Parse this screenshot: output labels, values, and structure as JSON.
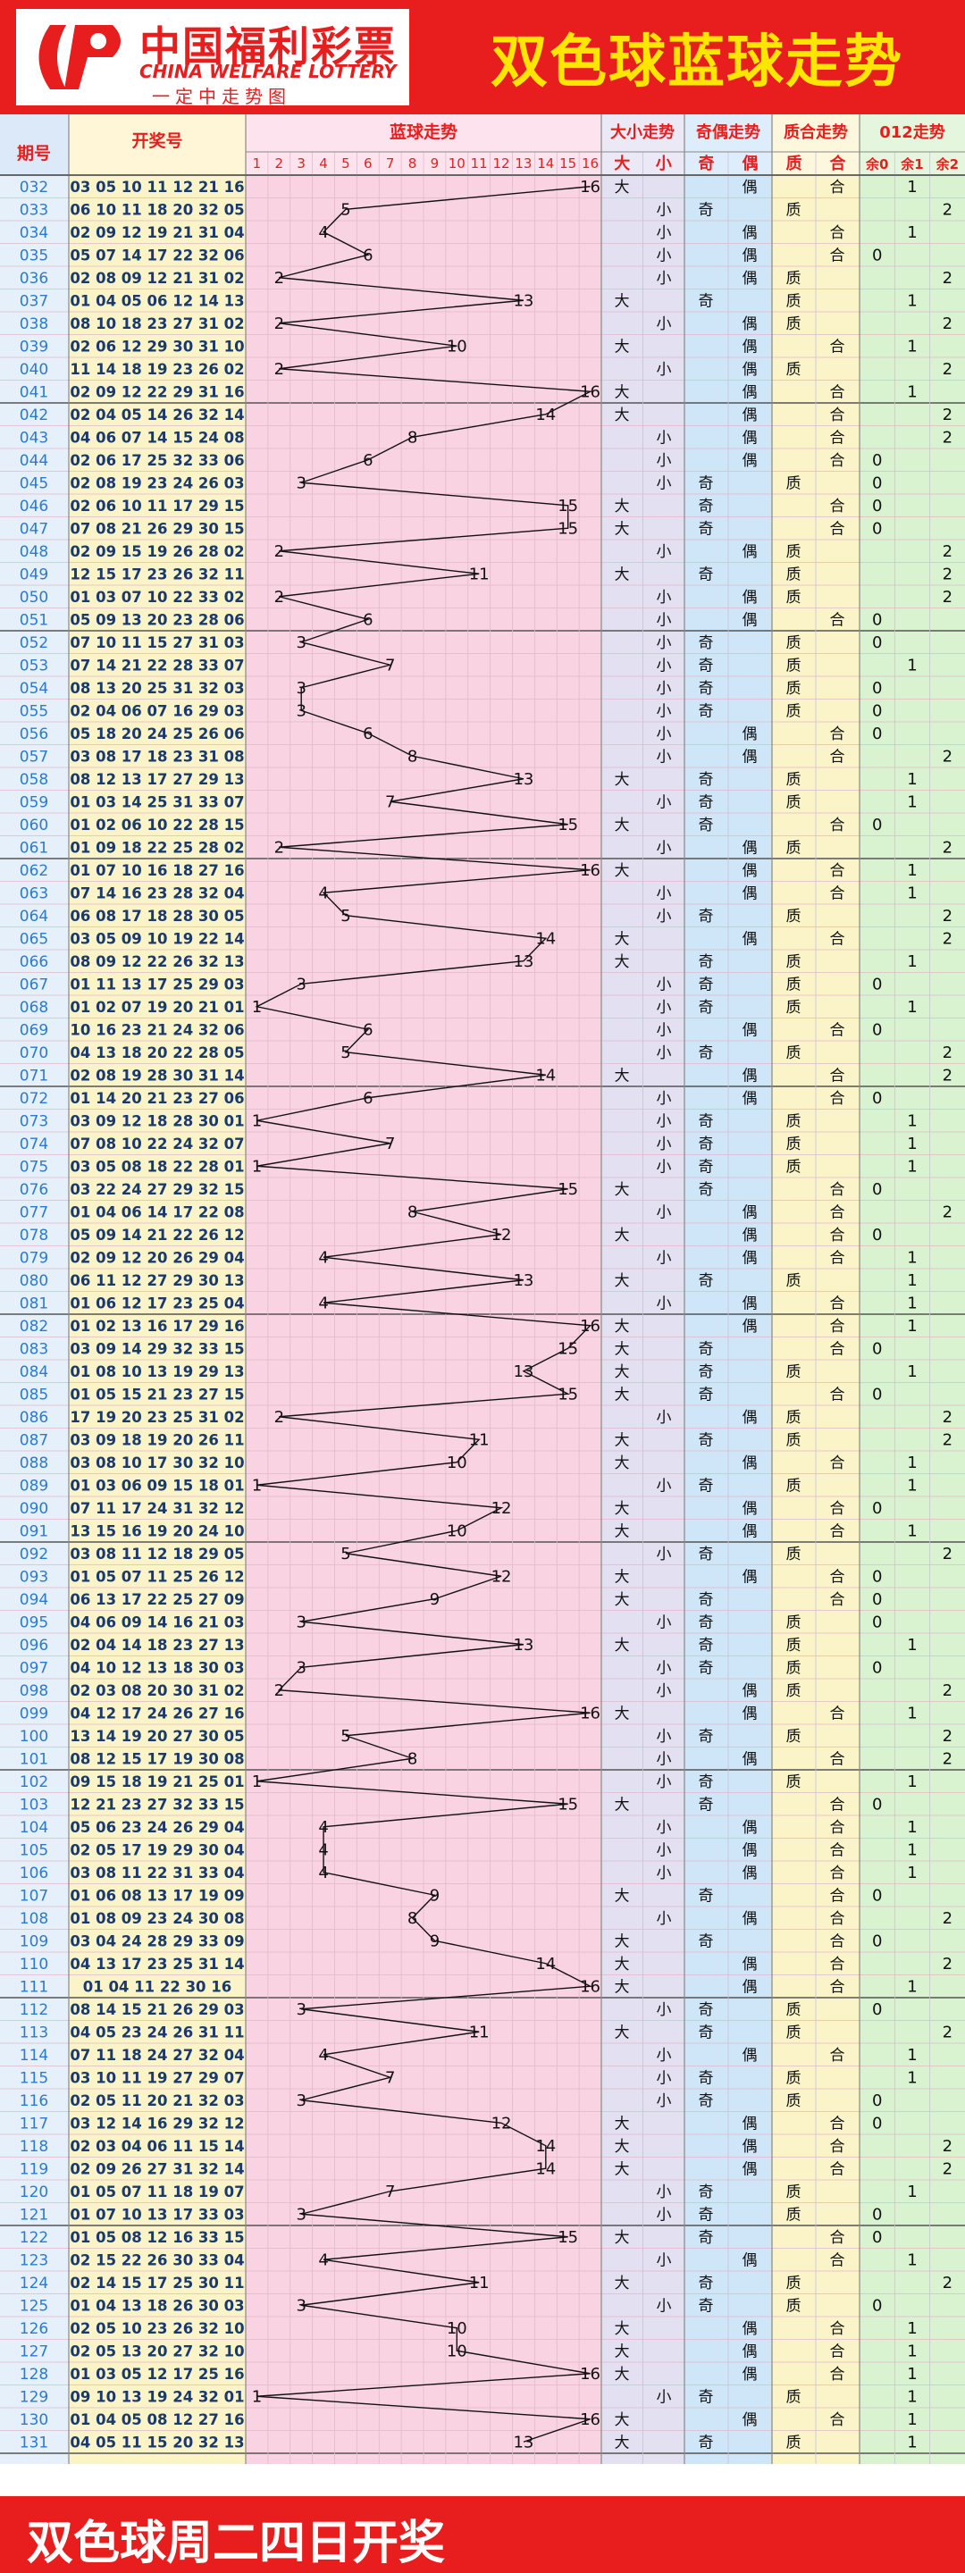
{
  "header": {
    "logo_cn": "中国福利彩票",
    "logo_en": "CHINA WELFARE LOTTERY",
    "logo_slogan": "一定中走势图",
    "title": "双色球蓝球走势"
  },
  "footer": {
    "text": "双色球周二四日开奖"
  },
  "columns": {
    "issue": "期号",
    "numbers": "开奖号",
    "blue": "蓝球走势",
    "size": "大小走势",
    "parity": "奇偶走势",
    "prime": "质合走势",
    "mod3": "012走势"
  },
  "sub_headers": {
    "blue_numbers": [
      "1",
      "2",
      "3",
      "4",
      "5",
      "6",
      "7",
      "8",
      "9",
      "10",
      "11",
      "12",
      "13",
      "14",
      "15",
      "16"
    ],
    "size": [
      "大",
      "小"
    ],
    "parity": [
      "奇",
      "偶"
    ],
    "prime": [
      "质",
      "合"
    ],
    "mod3": [
      "余0",
      "余1",
      "余2"
    ]
  },
  "colors": {
    "header_red": "#e81d1d",
    "title_yellow": "#ffe600",
    "pink_zone": "#f9d3e2",
    "lavender_zone": "#e3e0f1",
    "blue_zone": "#cfe5f8",
    "yellow_zone": "#fbf4c8",
    "green_zone": "#d9f3d1",
    "grid": "#e8b8c8",
    "issue_blue": "#2a7ad0"
  },
  "chart_data": {
    "type": "table",
    "title": "双色球蓝球走势",
    "rows": [
      {
        "issue": "032",
        "numbers": "03 05 10 11 12 21 16",
        "blue": 16
      },
      {
        "issue": "033",
        "numbers": "06 10 11 18 20 32 05",
        "blue": 5
      },
      {
        "issue": "034",
        "numbers": "02 09 12 19 21 31 04",
        "blue": 4
      },
      {
        "issue": "035",
        "numbers": "05 07 14 17 22 32 06",
        "blue": 6
      },
      {
        "issue": "036",
        "numbers": "02 08 09 12 21 31 02",
        "blue": 2
      },
      {
        "issue": "037",
        "numbers": "01 04 05 06 12 14 13",
        "blue": 13
      },
      {
        "issue": "038",
        "numbers": "08 10 18 23 27 31 02",
        "blue": 2
      },
      {
        "issue": "039",
        "numbers": "02 06 12 29 30 31 10",
        "blue": 10
      },
      {
        "issue": "040",
        "numbers": "11 14 18 19 23 26 02",
        "blue": 2
      },
      {
        "issue": "041",
        "numbers": "02 09 12 22 29 31 16",
        "blue": 16
      },
      {
        "issue": "042",
        "numbers": "02 04 05 14 26 32 14",
        "blue": 14
      },
      {
        "issue": "043",
        "numbers": "04 06 07 14 15 24 08",
        "blue": 8
      },
      {
        "issue": "044",
        "numbers": "02 06 17 25 32 33 06",
        "blue": 6
      },
      {
        "issue": "045",
        "numbers": "02 08 19 23 24 26 03",
        "blue": 3
      },
      {
        "issue": "046",
        "numbers": "02 06 10 11 17 29 15",
        "blue": 15
      },
      {
        "issue": "047",
        "numbers": "07 08 21 26 29 30 15",
        "blue": 15
      },
      {
        "issue": "048",
        "numbers": "02 09 15 19 26 28 02",
        "blue": 2
      },
      {
        "issue": "049",
        "numbers": "12 15 17 23 26 32 11",
        "blue": 11
      },
      {
        "issue": "050",
        "numbers": "01 03 07 10 22 33 02",
        "blue": 2
      },
      {
        "issue": "051",
        "numbers": "05 09 13 20 23 28 06",
        "blue": 6
      },
      {
        "issue": "052",
        "numbers": "07 10 11 15 27 31 03",
        "blue": 3
      },
      {
        "issue": "053",
        "numbers": "07 14 21 22 28 33 07",
        "blue": 7
      },
      {
        "issue": "054",
        "numbers": "08 13 20 25 31 32 03",
        "blue": 3
      },
      {
        "issue": "055",
        "numbers": "02 04 06 07 16 29 03",
        "blue": 3
      },
      {
        "issue": "056",
        "numbers": "05 18 20 24 25 26 06",
        "blue": 6
      },
      {
        "issue": "057",
        "numbers": "03 08 17 18 23 31 08",
        "blue": 8
      },
      {
        "issue": "058",
        "numbers": "08 12 13 17 27 29 13",
        "blue": 13
      },
      {
        "issue": "059",
        "numbers": "01 03 14 25 31 33 07",
        "blue": 7
      },
      {
        "issue": "060",
        "numbers": "01 02 06 10 22 28 15",
        "blue": 15
      },
      {
        "issue": "061",
        "numbers": "01 09 18 22 25 28 02",
        "blue": 2
      },
      {
        "issue": "062",
        "numbers": "01 07 10 16 18 27 16",
        "blue": 16
      },
      {
        "issue": "063",
        "numbers": "07 14 16 23 28 32 04",
        "blue": 4
      },
      {
        "issue": "064",
        "numbers": "06 08 17 18 28 30 05",
        "blue": 5
      },
      {
        "issue": "065",
        "numbers": "03 05 09 10 19 22 14",
        "blue": 14
      },
      {
        "issue": "066",
        "numbers": "08 09 12 22 26 32 13",
        "blue": 13
      },
      {
        "issue": "067",
        "numbers": "01 11 13 17 25 29 03",
        "blue": 3
      },
      {
        "issue": "068",
        "numbers": "01 02 07 19 20 21 01",
        "blue": 1
      },
      {
        "issue": "069",
        "numbers": "10 16 23 21 24 32 06",
        "blue": 6
      },
      {
        "issue": "070",
        "numbers": "04 13 18 20 22 28 05",
        "blue": 5
      },
      {
        "issue": "071",
        "numbers": "02 08 19 28 30 31 14",
        "blue": 14
      },
      {
        "issue": "072",
        "numbers": "01 14 20 21 23 27 06",
        "blue": 6
      },
      {
        "issue": "073",
        "numbers": "03 09 12 18 28 30 01",
        "blue": 1
      },
      {
        "issue": "074",
        "numbers": "07 08 10 22 24 32 07",
        "blue": 7
      },
      {
        "issue": "075",
        "numbers": "03 05 08 18 22 28 01",
        "blue": 1
      },
      {
        "issue": "076",
        "numbers": "03 22 24 27 29 32 15",
        "blue": 15
      },
      {
        "issue": "077",
        "numbers": "01 04 06 14 17 22 08",
        "blue": 8
      },
      {
        "issue": "078",
        "numbers": "05 09 14 21 22 26 12",
        "blue": 12
      },
      {
        "issue": "079",
        "numbers": "02 09 12 20 26 29 04",
        "blue": 4
      },
      {
        "issue": "080",
        "numbers": "06 11 12 27 29 30 13",
        "blue": 13
      },
      {
        "issue": "081",
        "numbers": "01 06 12 17 23 25 04",
        "blue": 4
      },
      {
        "issue": "082",
        "numbers": "01 02 13 16 17 29 16",
        "blue": 16
      },
      {
        "issue": "083",
        "numbers": "03 09 14 29 32 33 15",
        "blue": 15
      },
      {
        "issue": "084",
        "numbers": "01 08 10 13 19 29 13",
        "blue": 13
      },
      {
        "issue": "085",
        "numbers": "01 05 15 21 23 27 15",
        "blue": 15
      },
      {
        "issue": "086",
        "numbers": "17 19 20 23 25 31 02",
        "blue": 2
      },
      {
        "issue": "087",
        "numbers": "03 09 18 19 20 26 11",
        "blue": 11
      },
      {
        "issue": "088",
        "numbers": "03 08 10 17 30 32 10",
        "blue": 10
      },
      {
        "issue": "089",
        "numbers": "01 03 06 09 15 18 01",
        "blue": 1
      },
      {
        "issue": "090",
        "numbers": "07 11 17 24 31 32 12",
        "blue": 12
      },
      {
        "issue": "091",
        "numbers": "13 15 16 19 20 24 10",
        "blue": 10
      },
      {
        "issue": "092",
        "numbers": "03 08 11 12 18 29 05",
        "blue": 5
      },
      {
        "issue": "093",
        "numbers": "01 05 07 11 25 26 12",
        "blue": 12
      },
      {
        "issue": "094",
        "numbers": "06 13 17 22 25 27 09",
        "blue": 9
      },
      {
        "issue": "095",
        "numbers": "04 06 09 14 16 21 03",
        "blue": 3
      },
      {
        "issue": "096",
        "numbers": "02 04 14 18 23 27 13",
        "blue": 13
      },
      {
        "issue": "097",
        "numbers": "04 10 12 13 18 30 03",
        "blue": 3
      },
      {
        "issue": "098",
        "numbers": "02 03 08 20 30 31 02",
        "blue": 2
      },
      {
        "issue": "099",
        "numbers": "04 12 17 24 26 27 16",
        "blue": 16
      },
      {
        "issue": "100",
        "numbers": "13 14 19 20 27 30 05",
        "blue": 5
      },
      {
        "issue": "101",
        "numbers": "08 12 15 17 19 30 08",
        "blue": 8
      },
      {
        "issue": "102",
        "numbers": "09 15 18 19 21 25 01",
        "blue": 1
      },
      {
        "issue": "103",
        "numbers": "12 21 23 27 32 33 15",
        "blue": 15
      },
      {
        "issue": "104",
        "numbers": "05 06 23 24 26 29 04",
        "blue": 4
      },
      {
        "issue": "105",
        "numbers": "02 05 17 19 29 30 04",
        "blue": 4
      },
      {
        "issue": "106",
        "numbers": "03 08 11 22 31 33 04",
        "blue": 4
      },
      {
        "issue": "107",
        "numbers": "01 06 08 13 17 19 09",
        "blue": 9
      },
      {
        "issue": "108",
        "numbers": "01 08 09 23 24 30 08",
        "blue": 8
      },
      {
        "issue": "109",
        "numbers": "03 04 24 28 29 33 09",
        "blue": 9
      },
      {
        "issue": "110",
        "numbers": "04 13 17 23 25 31 14",
        "blue": 14
      },
      {
        "issue": "111",
        "numbers": "01 04 11 22 30 16",
        "blue": 16
      },
      {
        "issue": "112",
        "numbers": "08 14 15 21 26 29 03",
        "blue": 3
      },
      {
        "issue": "113",
        "numbers": "04 05 23 24 26 31 11",
        "blue": 11
      },
      {
        "issue": "114",
        "numbers": "07 11 18 24 27 32 04",
        "blue": 4
      },
      {
        "issue": "115",
        "numbers": "03 10 11 19 27 29 07",
        "blue": 7
      },
      {
        "issue": "116",
        "numbers": "02 05 11 20 21 32 03",
        "blue": 3
      },
      {
        "issue": "117",
        "numbers": "03 12 14 16 29 32 12",
        "blue": 12
      },
      {
        "issue": "118",
        "numbers": "02 03 04 06 11 15 14",
        "blue": 14
      },
      {
        "issue": "119",
        "numbers": "02 09 26 27 31 32 14",
        "blue": 14
      },
      {
        "issue": "120",
        "numbers": "01 05 07 11 18 19 07",
        "blue": 7
      },
      {
        "issue": "121",
        "numbers": "01 07 10 13 17 33 03",
        "blue": 3
      },
      {
        "issue": "122",
        "numbers": "01 05 08 12 16 33 15",
        "blue": 15
      },
      {
        "issue": "123",
        "numbers": "02 15 22 26 30 33 04",
        "blue": 4
      },
      {
        "issue": "124",
        "numbers": "02 14 15 17 25 30 11",
        "blue": 11
      },
      {
        "issue": "125",
        "numbers": "01 04 13 18 26 30 03",
        "blue": 3
      },
      {
        "issue": "126",
        "numbers": "02 05 10 23 26 32 10",
        "blue": 10
      },
      {
        "issue": "127",
        "numbers": "02 05 13 20 27 32 10",
        "blue": 10
      },
      {
        "issue": "128",
        "numbers": "01 03 05 12 17 25 16",
        "blue": 16
      },
      {
        "issue": "129",
        "numbers": "09 10 13 19 24 32 01",
        "blue": 1
      },
      {
        "issue": "130",
        "numbers": "01 04 05 08 12 27 16",
        "blue": 16
      },
      {
        "issue": "131",
        "numbers": "04 05 11 15 20 32 13",
        "blue": 13
      }
    ]
  }
}
